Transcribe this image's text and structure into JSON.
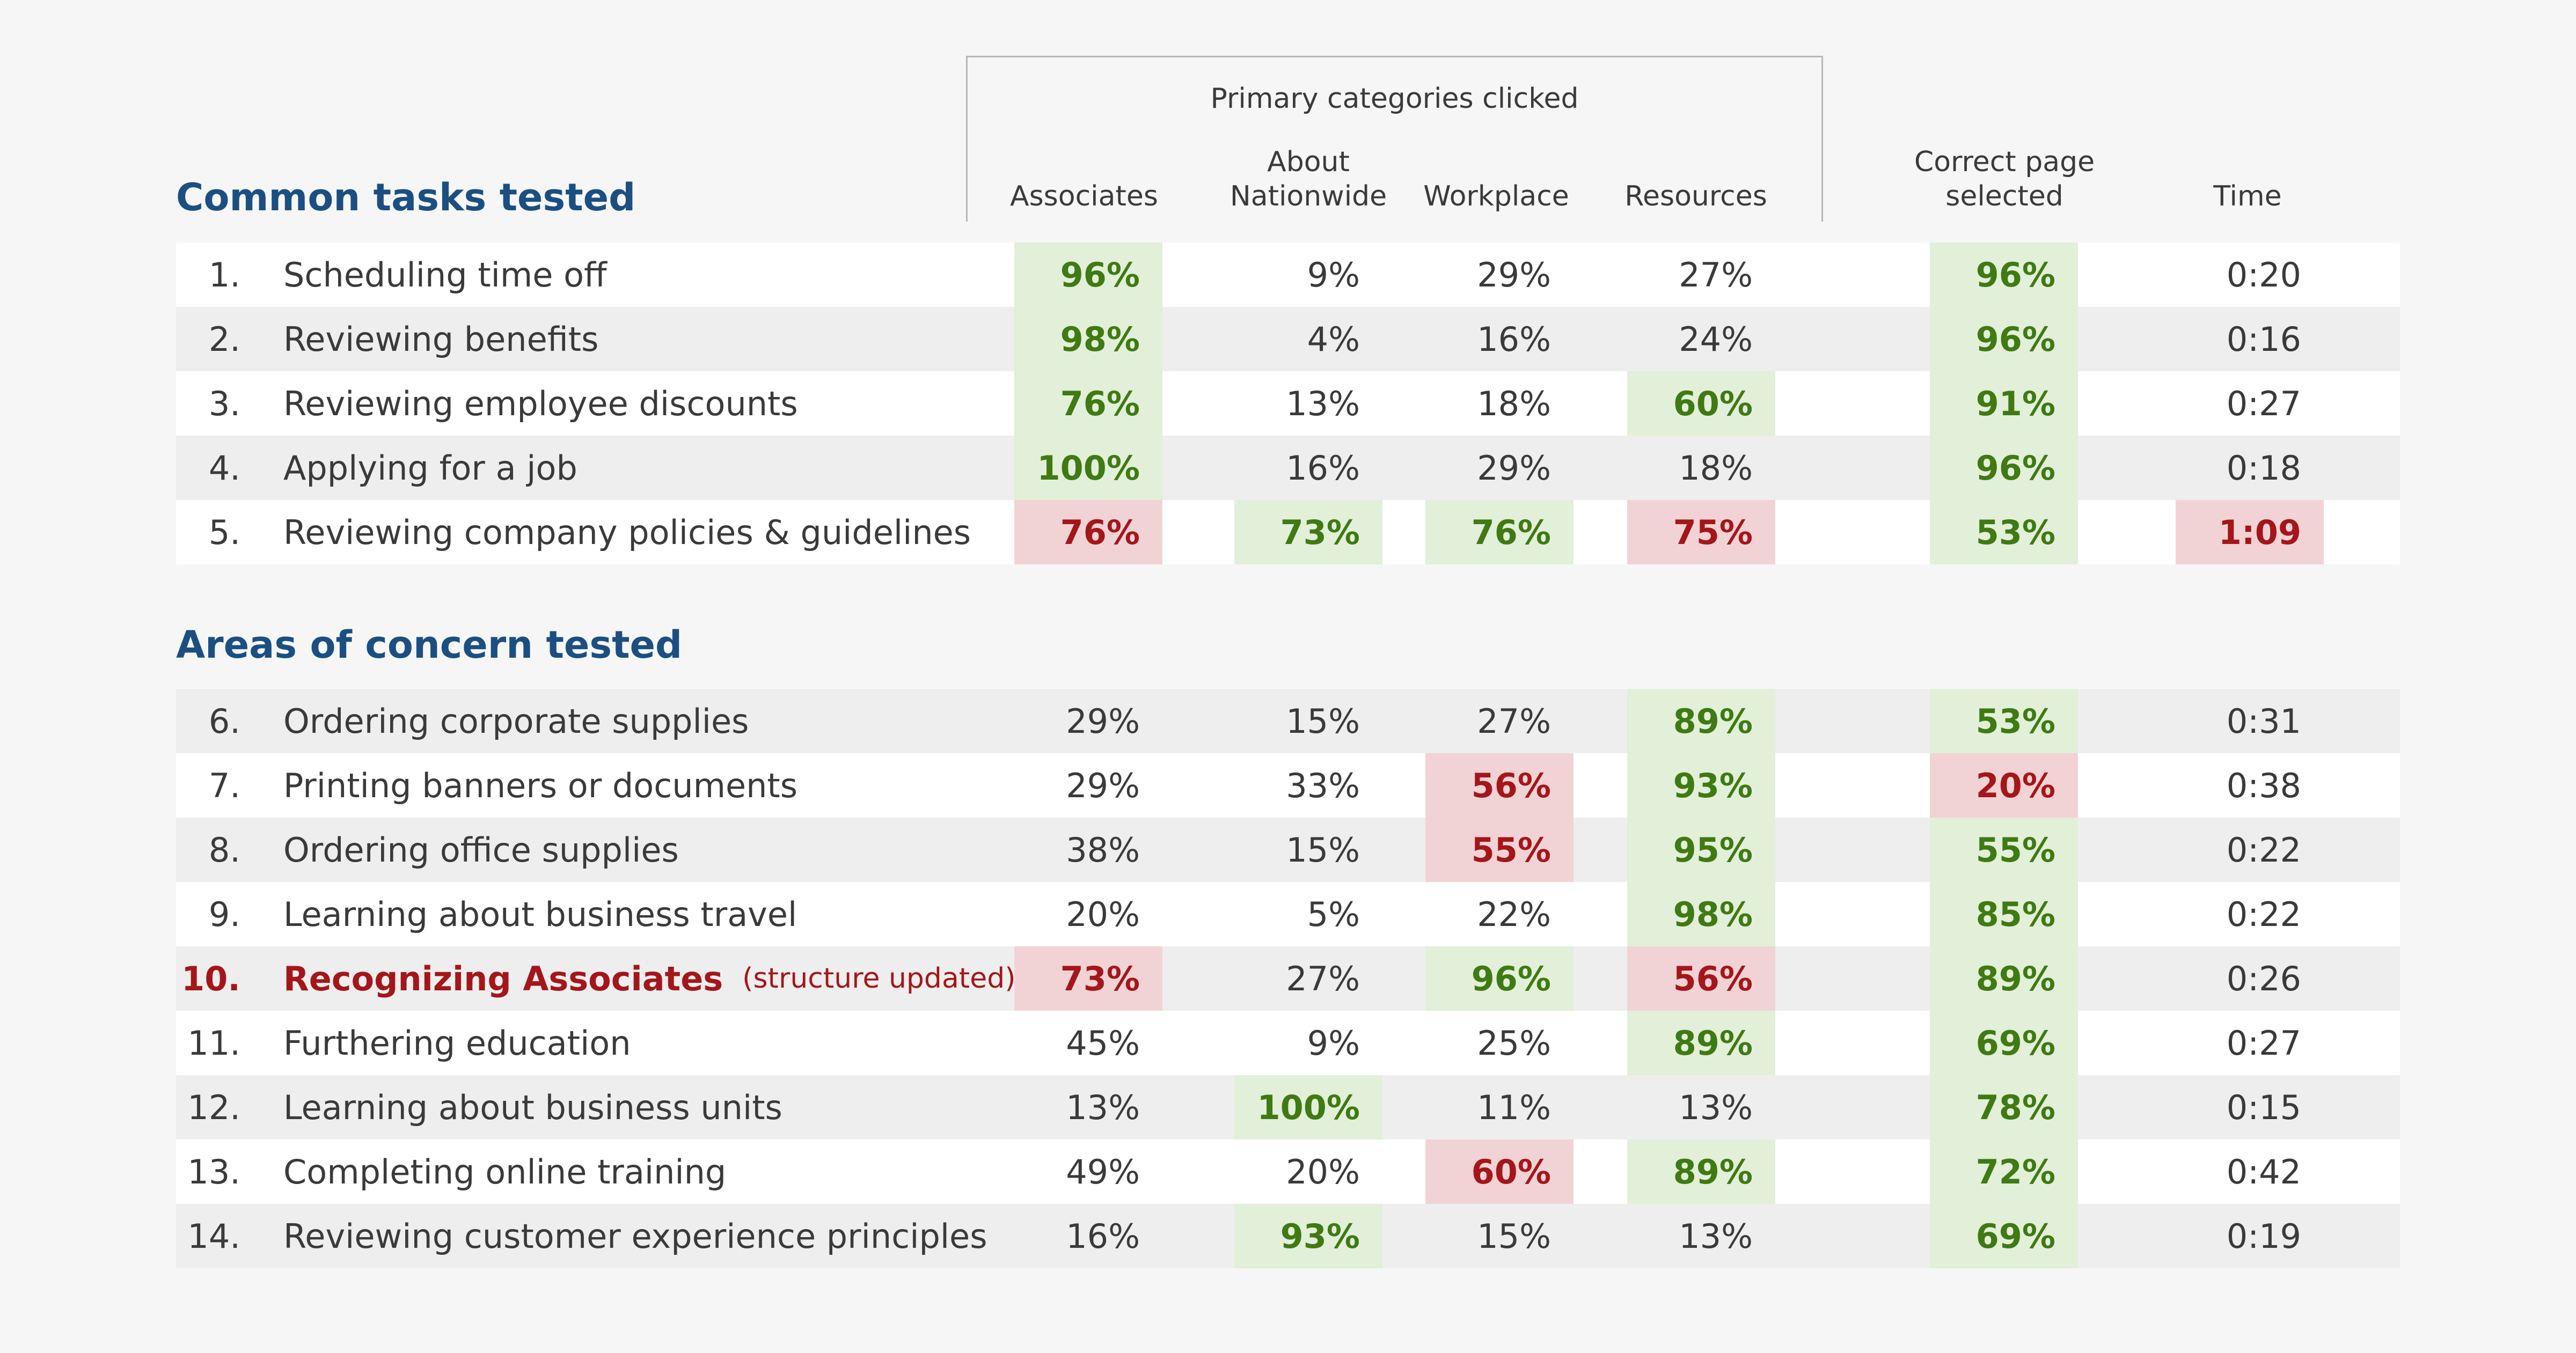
{
  "header": {
    "group_title": "Primary categories clicked",
    "columns": {
      "associates": "Associates",
      "about_line1": "About",
      "about_line2": "Nationwide",
      "workplace": "Workplace",
      "resources": "Resources",
      "correct_line1": "Correct page",
      "correct_line2": "selected",
      "time": "Time"
    }
  },
  "sections": {
    "common": "Common tasks tested",
    "concern": "Areas of concern tested"
  },
  "colors": {
    "good_bg": "#e2efd9",
    "good_text": "#3f7a12",
    "bad_bg": "#f2d3d5",
    "bad_text": "#a4161a",
    "section_title": "#1b4f82"
  },
  "rows": [
    {
      "num": "1.",
      "task": "Scheduling time off",
      "note": "",
      "associates": {
        "v": "96%",
        "s": "good"
      },
      "about": {
        "v": "9%",
        "s": ""
      },
      "workplace": {
        "v": "29%",
        "s": ""
      },
      "resources": {
        "v": "27%",
        "s": ""
      },
      "correct": {
        "v": "96%",
        "s": "good"
      },
      "time": {
        "v": "0:20",
        "s": ""
      }
    },
    {
      "num": "2.",
      "task": "Reviewing benefits",
      "note": "",
      "associates": {
        "v": "98%",
        "s": "good"
      },
      "about": {
        "v": "4%",
        "s": ""
      },
      "workplace": {
        "v": "16%",
        "s": ""
      },
      "resources": {
        "v": "24%",
        "s": ""
      },
      "correct": {
        "v": "96%",
        "s": "good"
      },
      "time": {
        "v": "0:16",
        "s": ""
      }
    },
    {
      "num": "3.",
      "task": "Reviewing employee discounts",
      "note": "",
      "associates": {
        "v": "76%",
        "s": "good"
      },
      "about": {
        "v": "13%",
        "s": ""
      },
      "workplace": {
        "v": "18%",
        "s": ""
      },
      "resources": {
        "v": "60%",
        "s": "good"
      },
      "correct": {
        "v": "91%",
        "s": "good"
      },
      "time": {
        "v": "0:27",
        "s": ""
      }
    },
    {
      "num": "4.",
      "task": "Applying for a job",
      "note": "",
      "associates": {
        "v": "100%",
        "s": "good"
      },
      "about": {
        "v": "16%",
        "s": ""
      },
      "workplace": {
        "v": "29%",
        "s": ""
      },
      "resources": {
        "v": "18%",
        "s": ""
      },
      "correct": {
        "v": "96%",
        "s": "good"
      },
      "time": {
        "v": "0:18",
        "s": ""
      }
    },
    {
      "num": "5.",
      "task": "Reviewing company policies & guidelines",
      "note": "",
      "associates": {
        "v": "76%",
        "s": "bad"
      },
      "about": {
        "v": "73%",
        "s": "good"
      },
      "workplace": {
        "v": "76%",
        "s": "good"
      },
      "resources": {
        "v": "75%",
        "s": "bad"
      },
      "correct": {
        "v": "53%",
        "s": "good"
      },
      "time": {
        "v": "1:09",
        "s": "bad"
      }
    },
    {
      "num": "6.",
      "task": "Ordering corporate supplies",
      "note": "",
      "associates": {
        "v": "29%",
        "s": ""
      },
      "about": {
        "v": "15%",
        "s": ""
      },
      "workplace": {
        "v": "27%",
        "s": ""
      },
      "resources": {
        "v": "89%",
        "s": "good"
      },
      "correct": {
        "v": "53%",
        "s": "good"
      },
      "time": {
        "v": "0:31",
        "s": ""
      }
    },
    {
      "num": "7.",
      "task": "Printing banners or documents",
      "note": "",
      "associates": {
        "v": "29%",
        "s": ""
      },
      "about": {
        "v": "33%",
        "s": ""
      },
      "workplace": {
        "v": "56%",
        "s": "bad"
      },
      "resources": {
        "v": "93%",
        "s": "good"
      },
      "correct": {
        "v": "20%",
        "s": "bad"
      },
      "time": {
        "v": "0:38",
        "s": ""
      }
    },
    {
      "num": "8.",
      "task": "Ordering office supplies",
      "note": "",
      "associates": {
        "v": "38%",
        "s": ""
      },
      "about": {
        "v": "15%",
        "s": ""
      },
      "workplace": {
        "v": "55%",
        "s": "bad"
      },
      "resources": {
        "v": "95%",
        "s": "good"
      },
      "correct": {
        "v": "55%",
        "s": "good"
      },
      "time": {
        "v": "0:22",
        "s": ""
      }
    },
    {
      "num": "9.",
      "task": "Learning about business travel",
      "note": "",
      "associates": {
        "v": "20%",
        "s": ""
      },
      "about": {
        "v": "5%",
        "s": ""
      },
      "workplace": {
        "v": "22%",
        "s": ""
      },
      "resources": {
        "v": "98%",
        "s": "good"
      },
      "correct": {
        "v": "85%",
        "s": "good"
      },
      "time": {
        "v": "0:22",
        "s": ""
      }
    },
    {
      "num": "10.",
      "task": "Recognizing Associates",
      "note": "(structure updated)",
      "associates": {
        "v": "73%",
        "s": "bad"
      },
      "about": {
        "v": "27%",
        "s": ""
      },
      "workplace": {
        "v": "96%",
        "s": "good"
      },
      "resources": {
        "v": "56%",
        "s": "bad"
      },
      "correct": {
        "v": "89%",
        "s": "good"
      },
      "time": {
        "v": "0:26",
        "s": ""
      }
    },
    {
      "num": "11.",
      "task": "Furthering education",
      "note": "",
      "associates": {
        "v": "45%",
        "s": ""
      },
      "about": {
        "v": "9%",
        "s": ""
      },
      "workplace": {
        "v": "25%",
        "s": ""
      },
      "resources": {
        "v": "89%",
        "s": "good"
      },
      "correct": {
        "v": "69%",
        "s": "good"
      },
      "time": {
        "v": "0:27",
        "s": ""
      }
    },
    {
      "num": "12.",
      "task": "Learning about business units",
      "note": "",
      "associates": {
        "v": "13%",
        "s": ""
      },
      "about": {
        "v": "100%",
        "s": "good"
      },
      "workplace": {
        "v": "11%",
        "s": ""
      },
      "resources": {
        "v": "13%",
        "s": ""
      },
      "correct": {
        "v": "78%",
        "s": "good"
      },
      "time": {
        "v": "0:15",
        "s": ""
      }
    },
    {
      "num": "13.",
      "task": "Completing online training",
      "note": "",
      "associates": {
        "v": "49%",
        "s": ""
      },
      "about": {
        "v": "20%",
        "s": ""
      },
      "workplace": {
        "v": "60%",
        "s": "bad"
      },
      "resources": {
        "v": "89%",
        "s": "good"
      },
      "correct": {
        "v": "72%",
        "s": "good"
      },
      "time": {
        "v": "0:42",
        "s": ""
      }
    },
    {
      "num": "14.",
      "task": "Reviewing customer experience principles",
      "note": "",
      "associates": {
        "v": "16%",
        "s": ""
      },
      "about": {
        "v": "93%",
        "s": "good"
      },
      "workplace": {
        "v": "15%",
        "s": ""
      },
      "resources": {
        "v": "13%",
        "s": ""
      },
      "correct": {
        "v": "69%",
        "s": "good"
      },
      "time": {
        "v": "0:19",
        "s": ""
      }
    }
  ]
}
